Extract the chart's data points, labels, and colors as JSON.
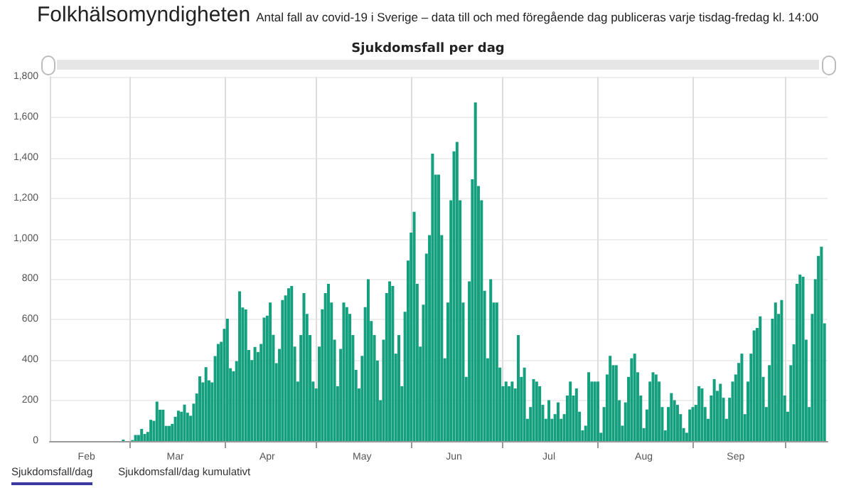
{
  "chart_data": {
    "type": "bar",
    "title": "Sjukdomsfall per dag",
    "annotations": [
      "Folkhälsomyndigheten",
      "Antal fall av covid-19 i Sverige – data till och med föregående dag publiceras varje tisdag-fredag kl. 14:00",
      "Sjukdomsfall/dag",
      "Sjukdomsfall/dag kumulativt"
    ],
    "x": [
      "--02-27",
      "--03-02",
      "--03-03",
      "--03-04",
      "--03-05",
      "--03-06",
      "--03-07",
      "--03-08",
      "--03-09",
      "--03-10",
      "--03-11",
      "--03-12",
      "--03-13",
      "--03-14",
      "--03-15",
      "--03-16",
      "--03-17",
      "--03-18",
      "--03-19",
      "--03-20",
      "--03-21",
      "--03-22",
      "--03-23",
      "--03-24",
      "--03-25",
      "--03-26",
      "--03-27",
      "--03-28",
      "--03-29",
      "--03-30",
      "--03-31",
      "--04-01",
      "--04-02",
      "--04-03",
      "--04-04",
      "--04-05",
      "--04-06",
      "--04-07",
      "--04-08",
      "--04-09",
      "--04-10",
      "--04-11",
      "--04-12",
      "--04-13",
      "--04-14",
      "--04-15",
      "--04-16",
      "--04-17",
      "--04-18",
      "--04-19",
      "--04-20",
      "--04-21",
      "--04-22",
      "--04-23",
      "--04-24",
      "--04-25",
      "--04-26",
      "--04-27",
      "--04-28",
      "--04-29",
      "--04-30",
      "--05-01",
      "--05-02",
      "--05-03",
      "--05-04",
      "--05-05",
      "--05-06",
      "--05-07",
      "--05-08",
      "--05-09",
      "--05-10",
      "--05-11",
      "--05-12",
      "--05-13",
      "--05-14",
      "--05-15",
      "--05-16",
      "--05-17",
      "--05-18",
      "--05-19",
      "--05-20",
      "--05-21",
      "--05-22",
      "--05-23",
      "--05-24",
      "--05-25",
      "--05-26",
      "--05-27",
      "--05-28",
      "--05-29",
      "--05-30",
      "--05-31",
      "--06-01",
      "--06-02",
      "--06-03",
      "--06-04",
      "--06-05",
      "--06-06",
      "--06-07",
      "--06-08",
      "--06-09",
      "--06-10",
      "--06-11",
      "--06-12",
      "--06-13",
      "--06-14",
      "--06-15",
      "--06-16",
      "--06-17",
      "--06-18",
      "--06-19",
      "--06-20",
      "--06-21",
      "--06-22",
      "--06-23",
      "--06-24",
      "--06-25",
      "--06-26",
      "--06-27",
      "--06-28",
      "--06-29",
      "--06-30",
      "--07-01",
      "--07-02",
      "--07-03",
      "--07-04",
      "--07-05",
      "--07-06",
      "--07-07",
      "--07-08",
      "--07-09",
      "--07-10",
      "--07-11",
      "--07-12",
      "--07-13",
      "--07-14",
      "--07-15",
      "--07-16",
      "--07-17",
      "--07-18",
      "--07-19",
      "--07-20",
      "--07-21",
      "--07-22",
      "--07-23",
      "--07-24",
      "--07-25",
      "--07-26",
      "--07-27",
      "--07-28",
      "--07-29",
      "--07-30",
      "--07-31",
      "--08-01",
      "--08-02",
      "--08-03",
      "--08-04",
      "--08-05",
      "--08-06",
      "--08-07",
      "--08-08",
      "--08-09",
      "--08-10",
      "--08-11",
      "--08-12",
      "--08-13",
      "--08-14",
      "--08-15",
      "--08-16",
      "--08-17",
      "--08-18",
      "--08-19",
      "--08-20",
      "--08-21",
      "--08-22",
      "--08-23",
      "--08-24",
      "--08-25",
      "--08-26",
      "--08-27",
      "--08-28",
      "--08-29",
      "--08-30",
      "--08-31",
      "--09-01",
      "--09-02",
      "--09-03",
      "--09-04",
      "--09-05",
      "--09-06",
      "--09-07",
      "--09-08",
      "--09-09",
      "--09-10",
      "--09-11",
      "--09-12",
      "--09-13",
      "--09-14",
      "--09-15",
      "--09-16",
      "--09-17",
      "--09-18",
      "--09-19",
      "--09-20",
      "--09-21",
      "--09-22",
      "--09-23",
      "--09-24",
      "--09-25",
      "--09-26",
      "--09-27",
      "--09-28",
      "--09-29",
      "--09-30",
      "--10-01",
      "--10-02",
      "--10-03",
      "--10-04",
      "--10-05",
      "--10-06",
      "--10-07",
      "--10-08",
      "--10-09",
      "--10-10",
      "--10-11",
      "--10-12",
      "--10-13",
      "--10-14"
    ],
    "values": [
      7,
      5,
      30,
      30,
      60,
      35,
      45,
      105,
      100,
      195,
      155,
      155,
      75,
      75,
      85,
      120,
      150,
      145,
      180,
      140,
      125,
      185,
      235,
      320,
      290,
      365,
      300,
      290,
      420,
      480,
      490,
      555,
      605,
      360,
      345,
      395,
      740,
      660,
      650,
      450,
      400,
      465,
      440,
      480,
      610,
      620,
      685,
      525,
      385,
      455,
      697,
      720,
      755,
      766,
      467,
      294,
      524,
      731,
      628,
      524,
      294,
      260,
      467,
      651,
      731,
      777,
      685,
      501,
      271,
      455,
      685,
      662,
      628,
      524,
      352,
      260,
      421,
      662,
      800,
      593,
      524,
      398,
      202,
      501,
      731,
      789,
      766,
      432,
      524,
      271,
      639,
      892,
      1030,
      1133,
      777,
      467,
      674,
      926,
      1018,
      1420,
      1317,
      1317,
      1018,
      409,
      685,
      1190,
      1432,
      1478,
      1190,
      685,
      317,
      789,
      1294,
      1673,
      1260,
      1190,
      743,
      409,
      800,
      685,
      685,
      363,
      271,
      294,
      271,
      294,
      260,
      524,
      317,
      363,
      110,
      168,
      306,
      294,
      271,
      179,
      110,
      202,
      110,
      133,
      191,
      110,
      133,
      225,
      294,
      225,
      260,
      145,
      53,
      76,
      340,
      294,
      294,
      294,
      41,
      168,
      329,
      421,
      375,
      375,
      202,
      76,
      191,
      317,
      409,
      432,
      340,
      225,
      64,
      156,
      294,
      340,
      329,
      294,
      168,
      53,
      168,
      237,
      202,
      179,
      133,
      64,
      41,
      156,
      168,
      179,
      271,
      260,
      168,
      110,
      225,
      306,
      248,
      283,
      214,
      110,
      214,
      294,
      329,
      386,
      432,
      133,
      294,
      432,
      547,
      559,
      616,
      317,
      168,
      375,
      605,
      685,
      628,
      697,
      225,
      145,
      375,
      478,
      777,
      823,
      812,
      501,
      168,
      628,
      800,
      915,
      961,
      582
    ],
    "color": "#14a07e",
    "xlim": [
      "--02-03",
      "--10-15"
    ],
    "xticks": [
      {
        "value": "--02-15",
        "label": "Feb"
      },
      {
        "value": "--03-01",
        "label": null
      },
      {
        "value": "--03-16",
        "label": "Mar"
      },
      {
        "value": "--04-01",
        "label": null
      },
      {
        "value": "--04-15",
        "label": "Apr"
      },
      {
        "value": "--05-01",
        "label": null
      },
      {
        "value": "--05-16",
        "label": "May"
      },
      {
        "value": "--06-01",
        "label": null
      },
      {
        "value": "--06-15",
        "label": "Jun"
      },
      {
        "value": "--07-01",
        "label": null
      },
      {
        "value": "--07-16",
        "label": "Jul"
      },
      {
        "value": "--08-01",
        "label": null
      },
      {
        "value": "--08-16",
        "label": "Aug"
      },
      {
        "value": "--09-01",
        "label": null
      },
      {
        "value": "--09-15",
        "label": "Sep"
      },
      {
        "value": "--10-01",
        "label": null
      }
    ],
    "ylim": [
      0,
      1800
    ],
    "yticks": [
      0,
      200,
      400,
      600,
      800,
      {
        "value": 1000,
        "label": "1,000"
      },
      {
        "value": 1200,
        "label": "1,200"
      },
      {
        "value": 1400,
        "label": "1,400"
      },
      {
        "value": 1600,
        "label": "1,600"
      },
      {
        "value": 1800,
        "label": "1,800"
      }
    ],
    "grid": true
  }
}
